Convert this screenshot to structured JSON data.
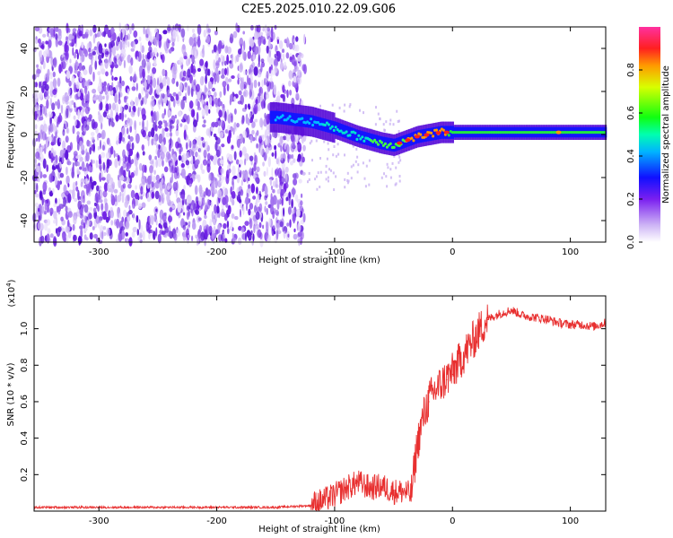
{
  "title": "C2E5.2025.010.22.09.G06",
  "chart_data": [
    {
      "type": "heatmap",
      "xlabel": "Height of straight line (km)",
      "ylabel": "Frequency (Hz)",
      "xlim": [
        -355,
        130
      ],
      "ylim": [
        -50,
        50
      ],
      "x_ticks": [
        -300,
        -200,
        -100,
        0,
        100
      ],
      "x_tick_labels": [
        "-300",
        "-200",
        "-100",
        "0",
        "100"
      ],
      "y_ticks": [
        -40,
        -20,
        0,
        20,
        40
      ],
      "y_tick_labels": [
        "-40",
        "-20",
        "0",
        "20",
        "40"
      ],
      "colorbar": {
        "label": "Normalized spectral amplitude",
        "range": [
          0,
          1
        ],
        "ticks": [
          0.0,
          0.2,
          0.4,
          0.6,
          0.8
        ],
        "tick_labels": [
          "0.0",
          "0.2",
          "0.4",
          "0.6",
          "0.8"
        ]
      },
      "frequency_track": {
        "x": [
          -150,
          -120,
          -100,
          -80,
          -60,
          -50,
          -40,
          -30,
          -20,
          -10,
          0,
          20,
          60,
          100,
          130
        ],
        "y": [
          8,
          6,
          3,
          -1,
          -4,
          -5,
          -3,
          -1,
          0,
          1,
          1,
          1,
          1,
          1,
          1
        ]
      },
      "grid": false,
      "legend": "none"
    },
    {
      "type": "line",
      "xlabel": "Height of straight line (km)",
      "ylabel": "SNR (10 * v/v)",
      "y_multiplier_label": "(x10",
      "y_multiplier_exponent": "4",
      "y_multiplier_close": ")",
      "xlim": [
        -355,
        130
      ],
      "ylim": [
        0,
        1.18
      ],
      "x_ticks": [
        -300,
        -200,
        -100,
        0,
        100
      ],
      "x_tick_labels": [
        "-300",
        "-200",
        "-100",
        "0",
        "100"
      ],
      "y_ticks": [
        0.2,
        0.4,
        0.6,
        0.8,
        1.0
      ],
      "y_tick_labels": [
        "0.2",
        "0.4",
        "0.6",
        "0.8",
        "1.0"
      ],
      "series": [
        {
          "color": "#e83030",
          "x": [
            -355,
            -300,
            -250,
            -200,
            -150,
            -120,
            -110,
            -100,
            -90,
            -80,
            -70,
            -60,
            -50,
            -40,
            -35,
            -30,
            -25,
            -20,
            -15,
            -10,
            -5,
            0,
            10,
            20,
            30,
            40,
            50,
            60,
            70,
            80,
            90,
            100,
            110,
            120,
            130
          ],
          "y": [
            0.02,
            0.02,
            0.02,
            0.02,
            0.02,
            0.03,
            0.05,
            0.08,
            0.12,
            0.15,
            0.12,
            0.13,
            0.1,
            0.1,
            0.08,
            0.35,
            0.5,
            0.6,
            0.65,
            0.68,
            0.72,
            0.75,
            0.85,
            0.95,
            1.05,
            1.08,
            1.1,
            1.07,
            1.06,
            1.05,
            1.03,
            1.02,
            1.02,
            1.01,
            1.03
          ]
        }
      ],
      "grid": false,
      "legend": "none"
    }
  ]
}
